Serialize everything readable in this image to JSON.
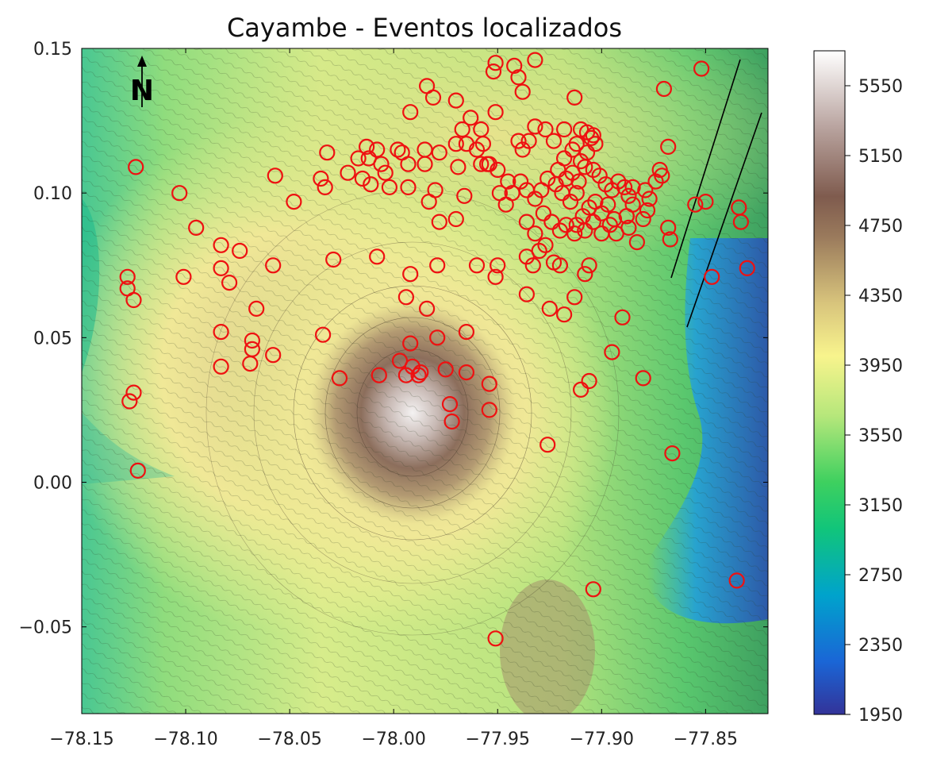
{
  "chart_data": {
    "type": "scatter",
    "title": "Cayambe - Eventos localizados",
    "xlabel": "",
    "ylabel": "",
    "xlim": [
      -78.15,
      -77.82
    ],
    "ylim": [
      -0.08,
      0.15
    ],
    "x_ticks": [
      -78.15,
      -78.1,
      -78.05,
      -78.0,
      -77.95,
      -77.9,
      -77.85
    ],
    "x_tick_labels": [
      "−78.15",
      "−78.10",
      "−78.05",
      "−78.00",
      "−77.95",
      "−77.90",
      "−77.85"
    ],
    "y_ticks": [
      0.15,
      0.1,
      0.05,
      0.0,
      -0.05
    ],
    "y_tick_labels": [
      "0.15",
      "0.10",
      "0.05",
      "0.00",
      "−0.05"
    ],
    "grid": false,
    "marker": "open circle",
    "marker_color": "#ee1111",
    "north_arrow_label": "N",
    "colorbar": {
      "ticks": [
        1950,
        2350,
        2750,
        3150,
        3550,
        3950,
        4350,
        4750,
        5150,
        5550
      ],
      "tick_labels": [
        "1950",
        "2350",
        "2750",
        "3150",
        "3550",
        "3950",
        "4350",
        "4750",
        "5150",
        "5550"
      ],
      "range": [
        1950,
        5750
      ],
      "colormap": "terrain"
    },
    "series": [
      {
        "points": [
          [
            -78.128,
            0.071
          ],
          [
            -78.128,
            0.067
          ],
          [
            -78.125,
            0.063
          ],
          [
            -78.124,
            0.109
          ],
          [
            -78.125,
            0.031
          ],
          [
            -78.127,
            0.028
          ],
          [
            -78.123,
            0.004
          ],
          [
            -78.103,
            0.1
          ],
          [
            -78.101,
            0.071
          ],
          [
            -78.095,
            0.088
          ],
          [
            -78.083,
            0.082
          ],
          [
            -78.083,
            0.074
          ],
          [
            -78.083,
            0.052
          ],
          [
            -78.083,
            0.04
          ],
          [
            -78.079,
            0.069
          ],
          [
            -78.074,
            0.08
          ],
          [
            -78.069,
            0.041
          ],
          [
            -78.068,
            0.049
          ],
          [
            -78.068,
            0.046
          ],
          [
            -78.066,
            0.06
          ],
          [
            -78.057,
            0.106
          ],
          [
            -78.058,
            0.075
          ],
          [
            -78.058,
            0.044
          ],
          [
            -78.048,
            0.097
          ],
          [
            -78.035,
            0.105
          ],
          [
            -78.033,
            0.102
          ],
          [
            -78.032,
            0.114
          ],
          [
            -78.034,
            0.051
          ],
          [
            -78.029,
            0.077
          ],
          [
            -78.026,
            0.036
          ],
          [
            -78.017,
            0.112
          ],
          [
            -78.022,
            0.107
          ],
          [
            -78.013,
            0.116
          ],
          [
            -78.012,
            0.112
          ],
          [
            -78.015,
            0.105
          ],
          [
            -78.011,
            0.103
          ],
          [
            -78.008,
            0.115
          ],
          [
            -78.006,
            0.11
          ],
          [
            -78.004,
            0.107
          ],
          [
            -78.002,
            0.102
          ],
          [
            -77.998,
            0.115
          ],
          [
            -78.008,
            0.078
          ],
          [
            -78.007,
            0.037
          ],
          [
            -77.996,
            0.114
          ],
          [
            -77.993,
            0.11
          ],
          [
            -77.992,
            0.128
          ],
          [
            -77.985,
            0.115
          ],
          [
            -77.985,
            0.11
          ],
          [
            -77.984,
            0.137
          ],
          [
            -77.981,
            0.133
          ],
          [
            -77.978,
            0.114
          ],
          [
            -77.98,
            0.101
          ],
          [
            -77.983,
            0.097
          ],
          [
            -77.978,
            0.09
          ],
          [
            -77.979,
            0.075
          ],
          [
            -77.993,
            0.102
          ],
          [
            -77.994,
            0.064
          ],
          [
            -77.992,
            0.072
          ],
          [
            -77.992,
            0.048
          ],
          [
            -77.984,
            0.06
          ],
          [
            -77.979,
            0.05
          ],
          [
            -77.997,
            0.042
          ],
          [
            -77.994,
            0.037
          ],
          [
            -77.991,
            0.04
          ],
          [
            -77.988,
            0.037
          ],
          [
            -77.987,
            0.038
          ],
          [
            -77.975,
            0.039
          ],
          [
            -77.965,
            0.038
          ],
          [
            -77.973,
            0.027
          ],
          [
            -77.972,
            0.021
          ],
          [
            -77.965,
            0.052
          ],
          [
            -77.954,
            0.034
          ],
          [
            -77.954,
            0.025
          ],
          [
            -77.97,
            0.117
          ],
          [
            -77.97,
            0.132
          ],
          [
            -77.967,
            0.122
          ],
          [
            -77.965,
            0.117
          ],
          [
            -77.963,
            0.126
          ],
          [
            -77.96,
            0.115
          ],
          [
            -77.958,
            0.122
          ],
          [
            -77.957,
            0.117
          ],
          [
            -77.955,
            0.11
          ],
          [
            -77.951,
            0.128
          ],
          [
            -77.952,
            0.142
          ],
          [
            -77.951,
            0.145
          ],
          [
            -77.942,
            0.144
          ],
          [
            -77.94,
            0.14
          ],
          [
            -77.938,
            0.135
          ],
          [
            -77.932,
            0.146
          ],
          [
            -77.969,
            0.109
          ],
          [
            -77.966,
            0.099
          ],
          [
            -77.97,
            0.091
          ],
          [
            -77.96,
            0.075
          ],
          [
            -77.951,
            0.071
          ],
          [
            -77.95,
            0.075
          ],
          [
            -77.954,
            0.11
          ],
          [
            -77.95,
            0.108
          ],
          [
            -77.958,
            0.11
          ],
          [
            -77.949,
            0.1
          ],
          [
            -77.945,
            0.104
          ],
          [
            -77.94,
            0.118
          ],
          [
            -77.938,
            0.115
          ],
          [
            -77.935,
            0.118
          ],
          [
            -77.932,
            0.123
          ],
          [
            -77.927,
            0.122
          ],
          [
            -77.923,
            0.118
          ],
          [
            -77.918,
            0.122
          ],
          [
            -77.912,
            0.117
          ],
          [
            -77.91,
            0.122
          ],
          [
            -77.907,
            0.121
          ],
          [
            -77.905,
            0.119
          ],
          [
            -77.903,
            0.117
          ],
          [
            -77.907,
            0.114
          ],
          [
            -77.91,
            0.111
          ],
          [
            -77.914,
            0.115
          ],
          [
            -77.918,
            0.112
          ],
          [
            -77.921,
            0.108
          ],
          [
            -77.917,
            0.105
          ],
          [
            -77.914,
            0.107
          ],
          [
            -77.911,
            0.104
          ],
          [
            -77.908,
            0.109
          ],
          [
            -77.904,
            0.108
          ],
          [
            -77.901,
            0.106
          ],
          [
            -77.898,
            0.103
          ],
          [
            -77.895,
            0.101
          ],
          [
            -77.892,
            0.104
          ],
          [
            -77.889,
            0.102
          ],
          [
            -77.887,
            0.099
          ],
          [
            -77.885,
            0.102
          ],
          [
            -77.879,
            0.101
          ],
          [
            -77.877,
            0.098
          ],
          [
            -77.874,
            0.104
          ],
          [
            -77.872,
            0.108
          ],
          [
            -77.878,
            0.094
          ],
          [
            -77.88,
            0.091
          ],
          [
            -77.885,
            0.096
          ],
          [
            -77.888,
            0.092
          ],
          [
            -77.887,
            0.088
          ],
          [
            -77.883,
            0.083
          ],
          [
            -77.894,
            0.091
          ],
          [
            -77.897,
            0.096
          ],
          [
            -77.9,
            0.093
          ],
          [
            -77.903,
            0.097
          ],
          [
            -77.906,
            0.095
          ],
          [
            -77.909,
            0.092
          ],
          [
            -77.912,
            0.089
          ],
          [
            -77.908,
            0.087
          ],
          [
            -77.904,
            0.09
          ],
          [
            -77.9,
            0.086
          ],
          [
            -77.896,
            0.089
          ],
          [
            -77.893,
            0.086
          ],
          [
            -77.912,
            0.1
          ],
          [
            -77.915,
            0.097
          ],
          [
            -77.919,
            0.1
          ],
          [
            -77.922,
            0.103
          ],
          [
            -77.926,
            0.105
          ],
          [
            -77.929,
            0.101
          ],
          [
            -77.932,
            0.098
          ],
          [
            -77.936,
            0.101
          ],
          [
            -77.939,
            0.104
          ],
          [
            -77.943,
            0.1
          ],
          [
            -77.946,
            0.096
          ],
          [
            -77.936,
            0.09
          ],
          [
            -77.932,
            0.086
          ],
          [
            -77.928,
            0.093
          ],
          [
            -77.924,
            0.09
          ],
          [
            -77.92,
            0.087
          ],
          [
            -77.917,
            0.089
          ],
          [
            -77.913,
            0.086
          ],
          [
            -77.936,
            0.078
          ],
          [
            -77.933,
            0.075
          ],
          [
            -77.93,
            0.08
          ],
          [
            -77.927,
            0.082
          ],
          [
            -77.923,
            0.076
          ],
          [
            -77.92,
            0.075
          ],
          [
            -77.936,
            0.065
          ],
          [
            -77.925,
            0.06
          ],
          [
            -77.918,
            0.058
          ],
          [
            -77.913,
            0.064
          ],
          [
            -77.908,
            0.072
          ],
          [
            -77.906,
            0.075
          ],
          [
            -77.89,
            0.057
          ],
          [
            -77.895,
            0.045
          ],
          [
            -77.888,
            0.092
          ],
          [
            -77.88,
            0.036
          ],
          [
            -77.906,
            0.035
          ],
          [
            -77.91,
            0.032
          ],
          [
            -77.926,
            0.013
          ],
          [
            -77.904,
            0.12
          ],
          [
            -77.913,
            0.133
          ],
          [
            -77.87,
            0.136
          ],
          [
            -77.868,
            0.116
          ],
          [
            -77.871,
            0.106
          ],
          [
            -77.868,
            0.088
          ],
          [
            -77.867,
            0.084
          ],
          [
            -77.855,
            0.096
          ],
          [
            -77.85,
            0.097
          ],
          [
            -77.847,
            0.071
          ],
          [
            -77.83,
            0.074
          ],
          [
            -77.834,
            0.095
          ],
          [
            -77.833,
            0.09
          ],
          [
            -77.852,
            0.143
          ],
          [
            -77.866,
            0.01
          ],
          [
            -77.904,
            -0.037
          ],
          [
            -77.835,
            -0.034
          ],
          [
            -77.951,
            -0.054
          ]
        ]
      }
    ]
  }
}
